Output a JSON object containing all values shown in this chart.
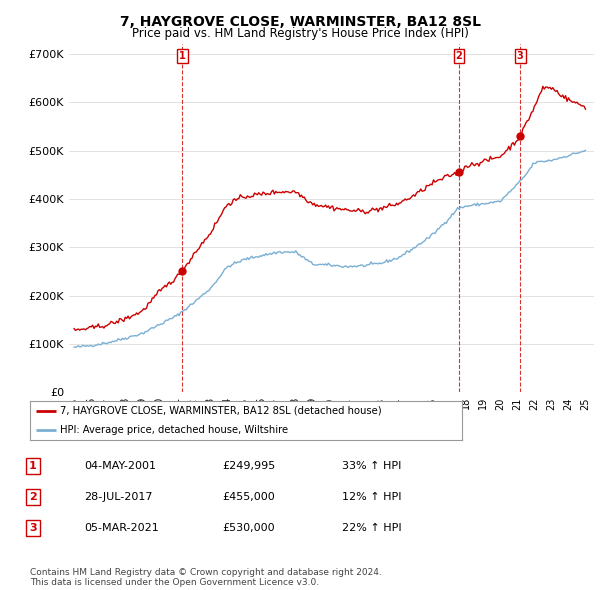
{
  "title": "7, HAYGROVE CLOSE, WARMINSTER, BA12 8SL",
  "subtitle": "Price paid vs. HM Land Registry's House Price Index (HPI)",
  "sale_dates_num": [
    2001.34,
    2017.57,
    2021.17
  ],
  "sale_prices": [
    249995,
    455000,
    530000
  ],
  "sale_labels": [
    "1",
    "2",
    "3"
  ],
  "sale_date_strs": [
    "04-MAY-2001",
    "28-JUL-2017",
    "05-MAR-2021"
  ],
  "sale_price_strs": [
    "£249,995",
    "£455,000",
    "£530,000"
  ],
  "sale_hpi_strs": [
    "33% ↑ HPI",
    "12% ↑ HPI",
    "22% ↑ HPI"
  ],
  "red_color": "#cc0000",
  "blue_color": "#7bafd4",
  "ylim": [
    0,
    720000
  ],
  "yticks": [
    0,
    100000,
    200000,
    300000,
    400000,
    500000,
    600000,
    700000
  ],
  "ytick_labels": [
    "£0",
    "£100K",
    "£200K",
    "£300K",
    "£400K",
    "£500K",
    "£600K",
    "£700K"
  ],
  "legend_label_red": "7, HAYGROVE CLOSE, WARMINSTER, BA12 8SL (detached house)",
  "legend_label_blue": "HPI: Average price, detached house, Wiltshire",
  "footer": "Contains HM Land Registry data © Crown copyright and database right 2024.\nThis data is licensed under the Open Government Licence v3.0.",
  "background_color": "#ffffff",
  "grid_color": "#dddddd"
}
